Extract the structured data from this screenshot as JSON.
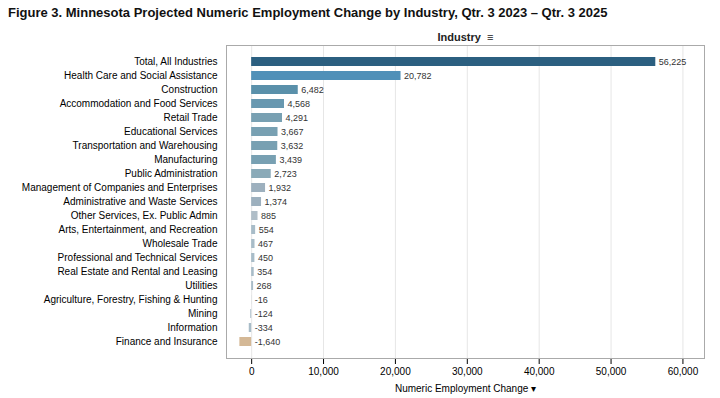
{
  "chart_data": {
    "type": "bar",
    "orientation": "horizontal",
    "title": "Figure 3. Minnesota Projected Numeric Employment Change by Industry, Qtr. 3 2023 – Qtr. 3 2025",
    "xlabel": "Numeric Employment Change ▾",
    "annotations": [
      "Industry  ≡"
    ],
    "categories": [
      "Finance and Insurance",
      "Information",
      "Mining",
      "Agriculture, Forestry, Fishing & Hunting",
      "Utilities",
      "Real Estate and Rental and Leasing",
      "Professional and Technical Services",
      "Wholesale Trade",
      "Arts, Entertainment, and Recreation",
      "Other Services, Ex. Public Admin",
      "Administrative and Waste Services",
      "Management of Companies and Enterprises",
      "Public Administration",
      "Manufacturing",
      "Transportation and Warehousing",
      "Educational Services",
      "Retail Trade",
      "Accommodation and Food Services",
      "Construction",
      "Health Care and Social Assistance",
      "Total, All Industries"
    ],
    "values": [
      -1640,
      -334,
      -124,
      -16,
      268,
      354,
      450,
      467,
      554,
      885,
      1374,
      1932,
      2723,
      3439,
      3632,
      3667,
      4291,
      4568,
      6482,
      20782,
      56225
    ],
    "value_labels": [
      "-1,640",
      "-334",
      "-124",
      "-16",
      "268",
      "354",
      "450",
      "467",
      "554",
      "885",
      "1,374",
      "1,932",
      "2,723",
      "3,439",
      "3,632",
      "3,667",
      "4,291",
      "4,568",
      "6,482",
      "20,782",
      "56,225"
    ],
    "colors": [
      "#d4b896",
      "#a8bcc8",
      "#a8bcc8",
      "#a8bcc8",
      "#a8bcc8",
      "#a8bcc8",
      "#a8bcc8",
      "#a8bcc8",
      "#a8bcc8",
      "#b0bec8",
      "#9db0be",
      "#9db0be",
      "#8aaab8",
      "#78a0b2",
      "#78a0b2",
      "#78a0b2",
      "#78a0b2",
      "#6898b0",
      "#5a90aa",
      "#5090b8",
      "#2b5f80"
    ],
    "xlim": [
      -3500,
      63000
    ],
    "xticks": [
      0,
      {
        "value": 10000,
        "label": "10,000"
      },
      {
        "value": 20000,
        "label": "20,000"
      },
      {
        "value": 30000,
        "label": "30,000"
      },
      {
        "value": 40000,
        "label": "40,000"
      },
      {
        "value": 50000,
        "label": "50,000"
      },
      {
        "value": 60000,
        "label": "60,000"
      }
    ],
    "grid": true,
    "data_labels": true
  }
}
